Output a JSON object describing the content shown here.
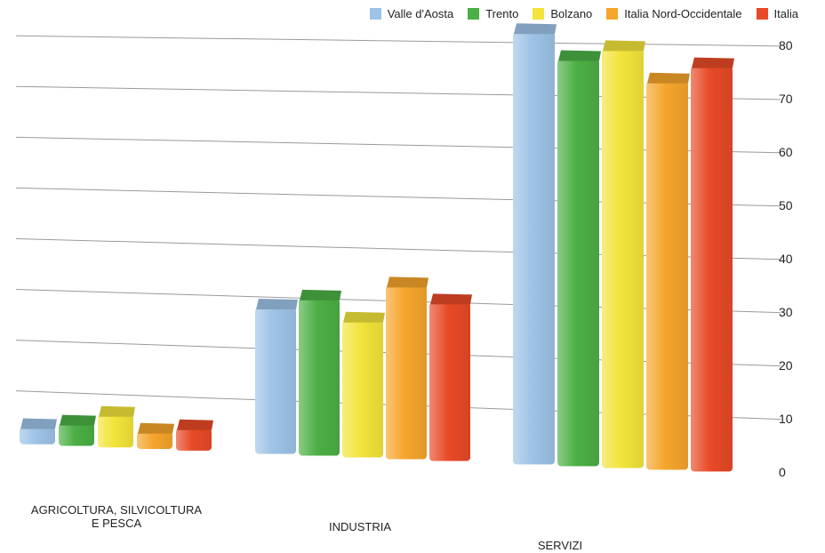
{
  "chart_data": {
    "type": "bar",
    "categories": [
      "AGRICOLTURA, SILVICOLTURA E PESCA",
      "INDUSTRIA",
      "SERVIZI"
    ],
    "category_lines": [
      [
        "AGRICOLTURA, SILVICOLTURA",
        "E PESCA"
      ],
      [
        "INDUSTRIA"
      ],
      [
        "SERVIZI"
      ]
    ],
    "series": [
      {
        "name": "Valle d'Aosta",
        "color": "#9dc3e6",
        "values": [
          3,
          28,
          82
        ]
      },
      {
        "name": "Trento",
        "color": "#4caf45",
        "values": [
          4,
          30,
          77
        ]
      },
      {
        "name": "Bolzano",
        "color": "#f2e43a",
        "values": [
          6,
          26,
          79
        ]
      },
      {
        "name": "Italia Nord-Occidentale",
        "color": "#f5a52c",
        "values": [
          3,
          33,
          73
        ]
      },
      {
        "name": "Italia",
        "color": "#e84a27",
        "values": [
          4,
          30,
          76
        ]
      }
    ],
    "yticks": [
      "0",
      "10",
      "20",
      "30",
      "40",
      "50",
      "60",
      "70",
      "80"
    ],
    "ylim": [
      0,
      80
    ],
    "grid": true,
    "legend": "top-right",
    "title": "",
    "xlabel": "",
    "ylabel": ""
  }
}
